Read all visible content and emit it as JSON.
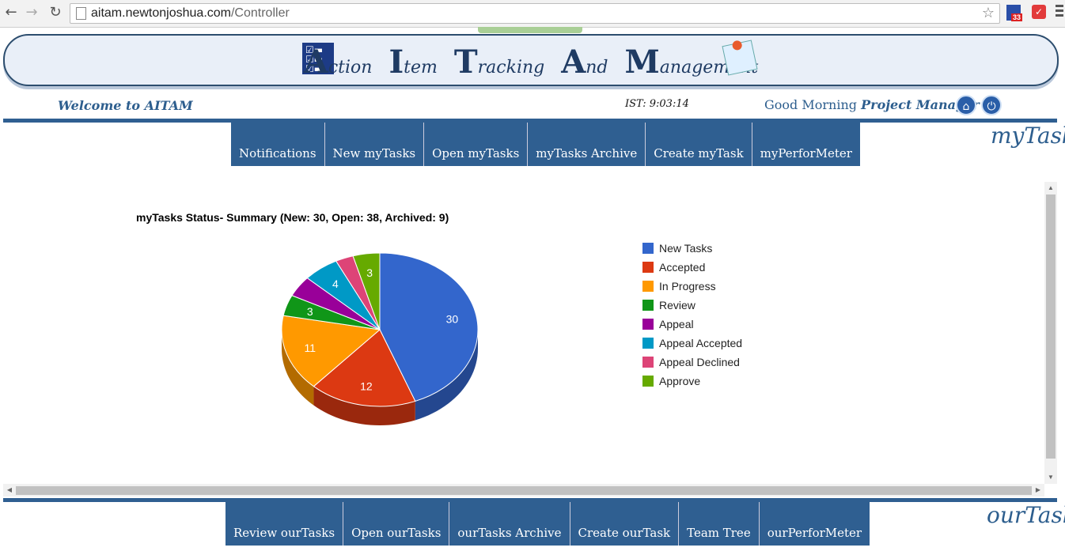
{
  "browser": {
    "url_host": "aitam.newtonjoshua.com",
    "url_path": "/Controller",
    "ext_badge": "33"
  },
  "banner": {
    "words": [
      {
        "cap": "A",
        "rest": "ction"
      },
      {
        "cap": "I",
        "rest": "tem"
      },
      {
        "cap": "T",
        "rest": "racking"
      },
      {
        "cap": "A",
        "rest": "nd"
      },
      {
        "cap": "M",
        "rest": "anagement"
      }
    ]
  },
  "header": {
    "welcome": "Welcome to AITAM",
    "clock": "IST: 9:03:14",
    "greeting": "Good Morning",
    "user": "Project Manager"
  },
  "mytask": {
    "label": "myTask",
    "tabs": [
      "Notifications",
      "New myTasks",
      "Open myTasks",
      "myTasks Archive",
      "Create myTask",
      "myPerforMeter"
    ]
  },
  "ourtask": {
    "label": "ourTask",
    "tabs": [
      "Review ourTasks",
      "Open ourTasks",
      "ourTasks Archive",
      "Create ourTask",
      "Team Tree",
      "ourPerforMeter"
    ]
  },
  "chart_data": {
    "type": "pie",
    "title": "myTasks Status- Summary (New: 30, Open: 38, Archived: 9)",
    "categories": [
      "New Tasks",
      "Accepted",
      "In Progress",
      "Review",
      "Appeal",
      "Appeal Accepted",
      "Appeal Declined",
      "Approve"
    ],
    "values": [
      30,
      12,
      11,
      3,
      3,
      4,
      2,
      3
    ],
    "labels_shown": [
      "30",
      "12",
      "11",
      "3",
      "",
      "4",
      "",
      "3"
    ],
    "colors": [
      "#3366cc",
      "#dc3912",
      "#ff9900",
      "#109618",
      "#990099",
      "#0099c6",
      "#dd4477",
      "#66aa00"
    ],
    "style": "3d",
    "legend": "right"
  }
}
